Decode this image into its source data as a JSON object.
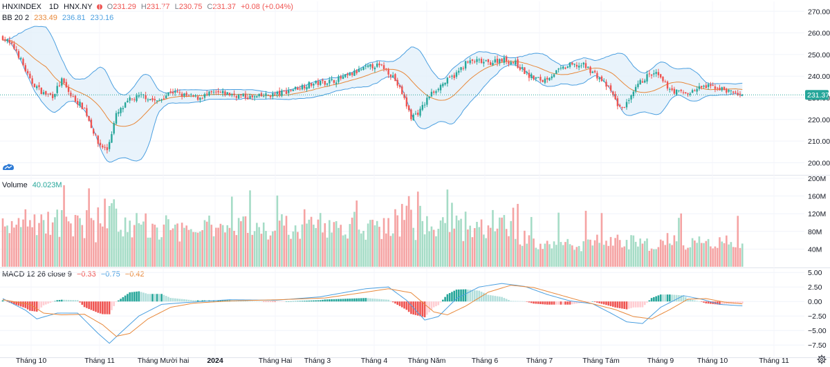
{
  "header": {
    "symbol": "HNXINDEX",
    "interval": "1D",
    "exchange": "HNX.NY",
    "open": "O231.29",
    "high": "H231.77",
    "low": "L230.75",
    "close": "C231.37",
    "change": "+0.08 (+0.04%)"
  },
  "bb_legend": {
    "label": "BB 20 2",
    "basis": "233.49",
    "upper": "236.81",
    "lower": "230.16"
  },
  "volume_legend": {
    "label": "Volume",
    "value": "40.023M"
  },
  "macd_legend": {
    "label": "MACD 12 26 close 9",
    "hist": "−0.33",
    "macd": "−0.75",
    "signal": "−0.42"
  },
  "colors": {
    "up": "#26a69a",
    "down": "#ef5350",
    "bb": "#4a9fe0",
    "basis": "#e8883a",
    "bb_fill": "#e3f0fa",
    "grid": "#f0f3fa"
  },
  "chart_data": {
    "type": "candlestick",
    "price_axis": {
      "ticks": [
        "270.00",
        "260.00",
        "250.00",
        "240.00",
        "230.00",
        "220.00",
        "210.00",
        "200.00"
      ],
      "last": "231.37",
      "range": [
        196,
        272
      ]
    },
    "volume_axis": {
      "ticks": [
        "200M",
        "160M",
        "120M",
        "80M",
        "40M"
      ],
      "range": [
        0,
        200
      ]
    },
    "macd_axis": {
      "ticks": [
        "5.00",
        "2.50",
        "0.00",
        "−2.50",
        "−5.00",
        "−7.50"
      ],
      "range": [
        -9.5,
        5.5
      ]
    },
    "x_labels": [
      "Tháng 10",
      "Tháng 11",
      "Tháng Mười hai",
      "2024",
      "Tháng Hai",
      "Tháng 3",
      "Tháng 4",
      "Tháng Năm",
      "Tháng 6",
      "Tháng 7",
      "Tháng Tám",
      "Tháng 9",
      "Tháng 10",
      "Tháng 11"
    ],
    "close_anchors": [
      [
        0,
        258
      ],
      [
        6,
        252
      ],
      [
        12,
        238
      ],
      [
        18,
        232
      ],
      [
        22,
        231
      ],
      [
        26,
        238
      ],
      [
        30,
        231
      ],
      [
        36,
        225
      ],
      [
        42,
        209
      ],
      [
        46,
        206
      ],
      [
        50,
        222
      ],
      [
        56,
        229
      ],
      [
        62,
        231
      ],
      [
        68,
        228
      ],
      [
        74,
        233
      ],
      [
        80,
        231
      ],
      [
        86,
        230
      ],
      [
        92,
        232
      ],
      [
        98,
        232
      ],
      [
        104,
        231
      ],
      [
        110,
        230
      ],
      [
        116,
        231
      ],
      [
        122,
        232
      ],
      [
        128,
        234
      ],
      [
        134,
        236
      ],
      [
        140,
        237
      ],
      [
        146,
        238
      ],
      [
        152,
        240
      ],
      [
        158,
        243
      ],
      [
        164,
        245
      ],
      [
        168,
        244
      ],
      [
        172,
        240
      ],
      [
        176,
        232
      ],
      [
        180,
        221
      ],
      [
        184,
        224
      ],
      [
        188,
        231
      ],
      [
        192,
        235
      ],
      [
        196,
        238
      ],
      [
        200,
        241
      ],
      [
        204,
        246
      ],
      [
        208,
        247
      ],
      [
        214,
        246
      ],
      [
        220,
        248
      ],
      [
        226,
        246
      ],
      [
        232,
        240
      ],
      [
        238,
        238
      ],
      [
        244,
        242
      ],
      [
        250,
        245
      ],
      [
        256,
        245
      ],
      [
        260,
        242
      ],
      [
        264,
        238
      ],
      [
        268,
        233
      ],
      [
        272,
        225
      ],
      [
        276,
        228
      ],
      [
        280,
        236
      ],
      [
        284,
        240
      ],
      [
        288,
        241
      ],
      [
        292,
        236
      ],
      [
        296,
        233
      ],
      [
        302,
        232
      ],
      [
        308,
        235
      ],
      [
        314,
        235
      ],
      [
        320,
        233
      ],
      [
        326,
        231.37
      ]
    ],
    "macd": [
      [
        0,
        0.5
      ],
      [
        10,
        -1.5
      ],
      [
        15,
        -3
      ],
      [
        24,
        -2
      ],
      [
        33,
        -2
      ],
      [
        42,
        -5.5
      ],
      [
        47,
        -7.2
      ],
      [
        53,
        -5
      ],
      [
        60,
        -2.5
      ],
      [
        70,
        -0.5
      ],
      [
        80,
        -0.2
      ],
      [
        100,
        0.3
      ],
      [
        120,
        0.2
      ],
      [
        140,
        0.8
      ],
      [
        160,
        2.2
      ],
      [
        170,
        2.5
      ],
      [
        178,
        0.2
      ],
      [
        186,
        -3.2
      ],
      [
        192,
        -2.6
      ],
      [
        200,
        0.5
      ],
      [
        210,
        2.5
      ],
      [
        220,
        3.1
      ],
      [
        230,
        2.6
      ],
      [
        240,
        1.2
      ],
      [
        250,
        0.1
      ],
      [
        260,
        -0.4
      ],
      [
        268,
        -2
      ],
      [
        275,
        -3.5
      ],
      [
        282,
        -3.8
      ],
      [
        290,
        -1
      ],
      [
        300,
        1
      ],
      [
        308,
        0.4
      ],
      [
        316,
        -0.5
      ],
      [
        326,
        -0.75
      ]
    ],
    "signal": [
      [
        0,
        0.3
      ],
      [
        12,
        -0.5
      ],
      [
        18,
        -2
      ],
      [
        26,
        -2.3
      ],
      [
        36,
        -2.2
      ],
      [
        44,
        -4
      ],
      [
        50,
        -6
      ],
      [
        56,
        -5.5
      ],
      [
        64,
        -3
      ],
      [
        74,
        -1
      ],
      [
        84,
        -0.3
      ],
      [
        100,
        0.1
      ],
      [
        122,
        0.3
      ],
      [
        142,
        0.6
      ],
      [
        160,
        1.6
      ],
      [
        170,
        2.2
      ],
      [
        180,
        1.5
      ],
      [
        190,
        -1.8
      ],
      [
        196,
        -2.3
      ],
      [
        204,
        -0.8
      ],
      [
        214,
        1.6
      ],
      [
        224,
        2.8
      ],
      [
        234,
        2.4
      ],
      [
        244,
        1.3
      ],
      [
        254,
        0.2
      ],
      [
        262,
        -0.6
      ],
      [
        270,
        -1.4
      ],
      [
        278,
        -2.6
      ],
      [
        286,
        -3.0
      ],
      [
        294,
        -1.4
      ],
      [
        302,
        0.4
      ],
      [
        310,
        0.5
      ],
      [
        318,
        -0.1
      ],
      [
        326,
        -0.42
      ]
    ]
  }
}
